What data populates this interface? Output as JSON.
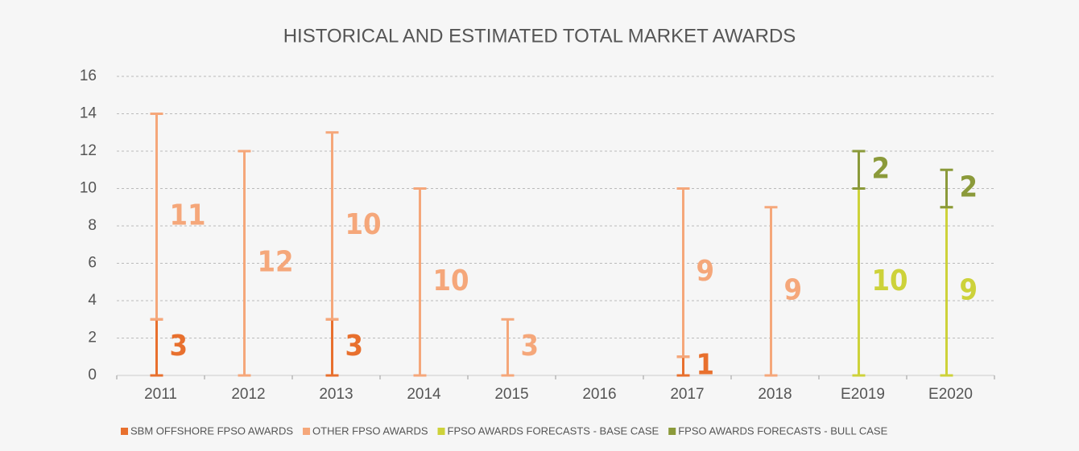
{
  "chart_data": {
    "type": "stacked-bar",
    "title": "HISTORICAL AND ESTIMATED TOTAL MARKET AWARDS",
    "categories": [
      "2011",
      "2012",
      "2013",
      "2014",
      "2015",
      "2016",
      "2017",
      "2018",
      "E2019",
      "E2020"
    ],
    "series": [
      {
        "name": "SBM OFFSHORE FPSO AWARDS",
        "color": "#e8702e",
        "values": [
          3,
          null,
          3,
          null,
          null,
          null,
          1,
          null,
          null,
          null
        ]
      },
      {
        "name": "OTHER FPSO AWARDS",
        "color": "#f5a77a",
        "values": [
          11,
          12,
          10,
          10,
          3,
          null,
          9,
          9,
          null,
          null
        ]
      },
      {
        "name": "FPSO AWARDS FORECASTS - BASE CASE",
        "color": "#cdd23a",
        "values": [
          null,
          null,
          null,
          null,
          null,
          null,
          null,
          null,
          10,
          9
        ]
      },
      {
        "name": "FPSO AWARDS FORECASTS - BULL CASE",
        "color": "#8b9a3a",
        "values": [
          null,
          null,
          null,
          null,
          null,
          null,
          null,
          null,
          2,
          2
        ]
      }
    ],
    "ylim": [
      0,
      16
    ],
    "yticks": [
      0,
      2,
      4,
      6,
      8,
      10,
      12,
      14,
      16
    ],
    "grid": true,
    "legend": "bottom"
  }
}
